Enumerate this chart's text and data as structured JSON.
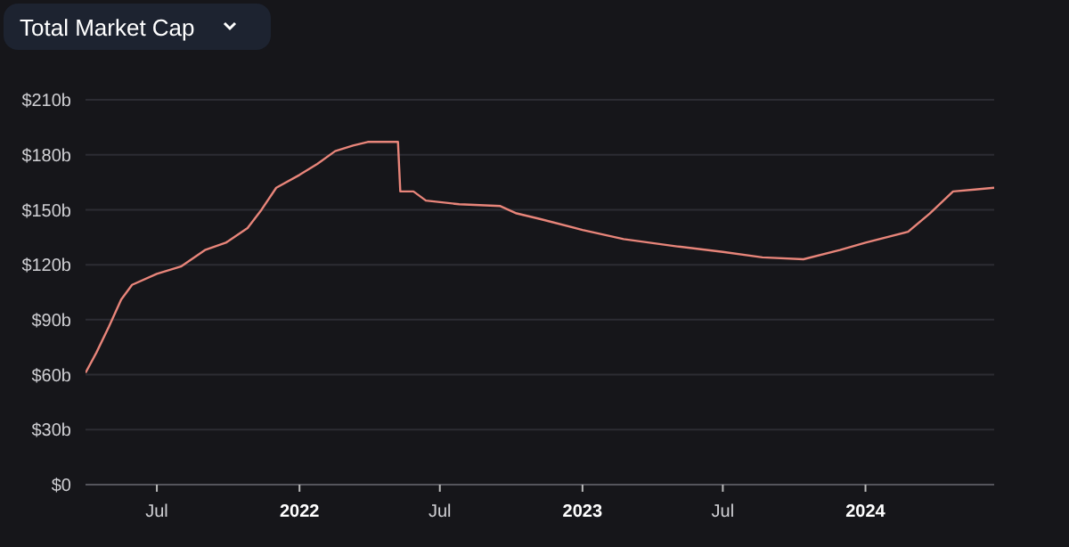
{
  "chart_data": {
    "type": "line",
    "title": "Total Market Cap",
    "x": [
      "2021-03-31",
      "2021-04-14",
      "2021-04-30",
      "2021-05-16",
      "2021-05-30",
      "2021-07-01",
      "2021-08-01",
      "2021-09-01",
      "2021-09-28",
      "2021-10-26",
      "2021-11-13",
      "2021-12-02",
      "2022-01-01",
      "2022-01-24",
      "2022-02-16",
      "2022-03-11",
      "2022-03-30",
      "2022-05-01",
      "2022-05-08",
      "2022-05-11",
      "2022-05-28",
      "2022-06-13",
      "2022-07-26",
      "2022-09-17",
      "2022-10-08",
      "2022-11-07",
      "2023-01-01",
      "2023-02-23",
      "2023-05-03",
      "2023-07-01",
      "2023-08-21",
      "2023-10-13",
      "2023-11-29",
      "2024-01-01",
      "2024-02-25",
      "2024-03-24",
      "2024-04-23",
      "2024-05-21",
      "2024-06-15"
    ],
    "series": [
      {
        "color": "#e8857a",
        "values": [
          61,
          72,
          86,
          101,
          109,
          115,
          119,
          128,
          132,
          140,
          150,
          162,
          169,
          175,
          182,
          185,
          187,
          187,
          187,
          160,
          160,
          155,
          153,
          152,
          148,
          145,
          139,
          134,
          130,
          127,
          124,
          123,
          128,
          132,
          138,
          148,
          160,
          161,
          162
        ]
      }
    ],
    "xlim": [
      "2021-03-31",
      "2024-06-15"
    ],
    "xticks": [
      {
        "value": "2021-07-01",
        "label": "Jul"
      },
      {
        "value": "2022-01-01",
        "label": "2022"
      },
      {
        "value": "2022-07-01",
        "label": "Jul"
      },
      {
        "value": "2023-01-01",
        "label": "2023"
      },
      {
        "value": "2023-07-01",
        "label": "Jul"
      },
      {
        "value": "2024-01-01",
        "label": "2024"
      }
    ],
    "ylim": [
      0,
      210
    ],
    "yticks": [
      {
        "value": 0,
        "label": "$0"
      },
      {
        "value": 30,
        "label": "$30b"
      },
      {
        "value": 60,
        "label": "$60b"
      },
      {
        "value": 90,
        "label": "$90b"
      },
      {
        "value": 120,
        "label": "$120b"
      },
      {
        "value": 150,
        "label": "$150b"
      },
      {
        "value": 180,
        "label": "$180b"
      },
      {
        "value": 210,
        "label": "$210b"
      }
    ],
    "grid": "y"
  }
}
